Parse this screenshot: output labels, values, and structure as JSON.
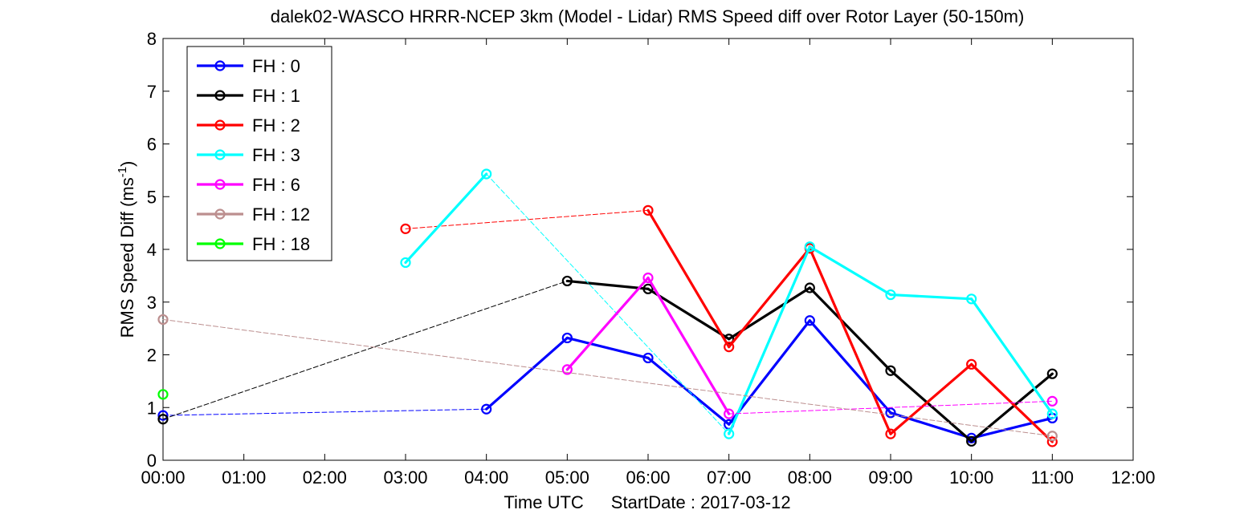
{
  "chart_data": {
    "type": "line",
    "title": "dalek02-WASCO HRRR-NCEP 3km (Model - Lidar) RMS Speed diff over Rotor Layer (50-150m)",
    "xlabel": "Time UTC",
    "xlabel_extra": "StartDate : 2017-03-12",
    "ylabel": "RMS Speed Diff (ms",
    "ylabel_sup": "-1",
    "ylabel_close": ")",
    "xlim": [
      0,
      12
    ],
    "ylim": [
      0,
      8
    ],
    "x_ticks": [
      0,
      1,
      2,
      3,
      4,
      5,
      6,
      7,
      8,
      9,
      10,
      11,
      12
    ],
    "x_tick_labels": [
      "00:00",
      "01:00",
      "02:00",
      "03:00",
      "04:00",
      "05:00",
      "06:00",
      "07:00",
      "08:00",
      "09:00",
      "10:00",
      "11:00",
      "12:00"
    ],
    "y_ticks": [
      0,
      1,
      2,
      3,
      4,
      5,
      6,
      7,
      8
    ],
    "y_tick_labels": [
      "0",
      "1",
      "2",
      "3",
      "4",
      "5",
      "6",
      "7",
      "8"
    ],
    "grid": false,
    "legend_position": "top-left",
    "series": [
      {
        "name": "FH : 0",
        "color": "#0000ff",
        "x": [
          0,
          4,
          5,
          6,
          7,
          8,
          9,
          10,
          11
        ],
        "y": [
          0.85,
          0.97,
          2.32,
          1.94,
          0.68,
          2.65,
          0.9,
          0.42,
          0.8
        ]
      },
      {
        "name": "FH : 1",
        "color": "#000000",
        "x": [
          0,
          5,
          6,
          7,
          8,
          9,
          10,
          11
        ],
        "y": [
          0.78,
          3.4,
          3.25,
          2.3,
          3.27,
          1.7,
          0.36,
          1.64
        ]
      },
      {
        "name": "FH : 2",
        "color": "#ff0000",
        "x": [
          3,
          6,
          7,
          8,
          9,
          10,
          11
        ],
        "y": [
          4.39,
          4.74,
          2.15,
          4.02,
          0.5,
          1.82,
          0.35
        ]
      },
      {
        "name": "FH : 3",
        "color": "#00ffff",
        "x": [
          3,
          4,
          7,
          8,
          9,
          10,
          11
        ],
        "y": [
          3.75,
          5.43,
          0.5,
          4.05,
          3.14,
          3.06,
          0.88
        ]
      },
      {
        "name": "FH : 6",
        "color": "#ff00ff",
        "x": [
          5,
          6,
          7,
          11
        ],
        "y": [
          1.72,
          3.46,
          0.88,
          1.12
        ]
      },
      {
        "name": "FH : 12",
        "color": "#bc8f8f",
        "x": [
          0,
          11
        ],
        "y": [
          2.67,
          0.46
        ]
      },
      {
        "name": "FH : 18",
        "color": "#00ff00",
        "x": [
          0
        ],
        "y": [
          1.25
        ]
      }
    ]
  }
}
